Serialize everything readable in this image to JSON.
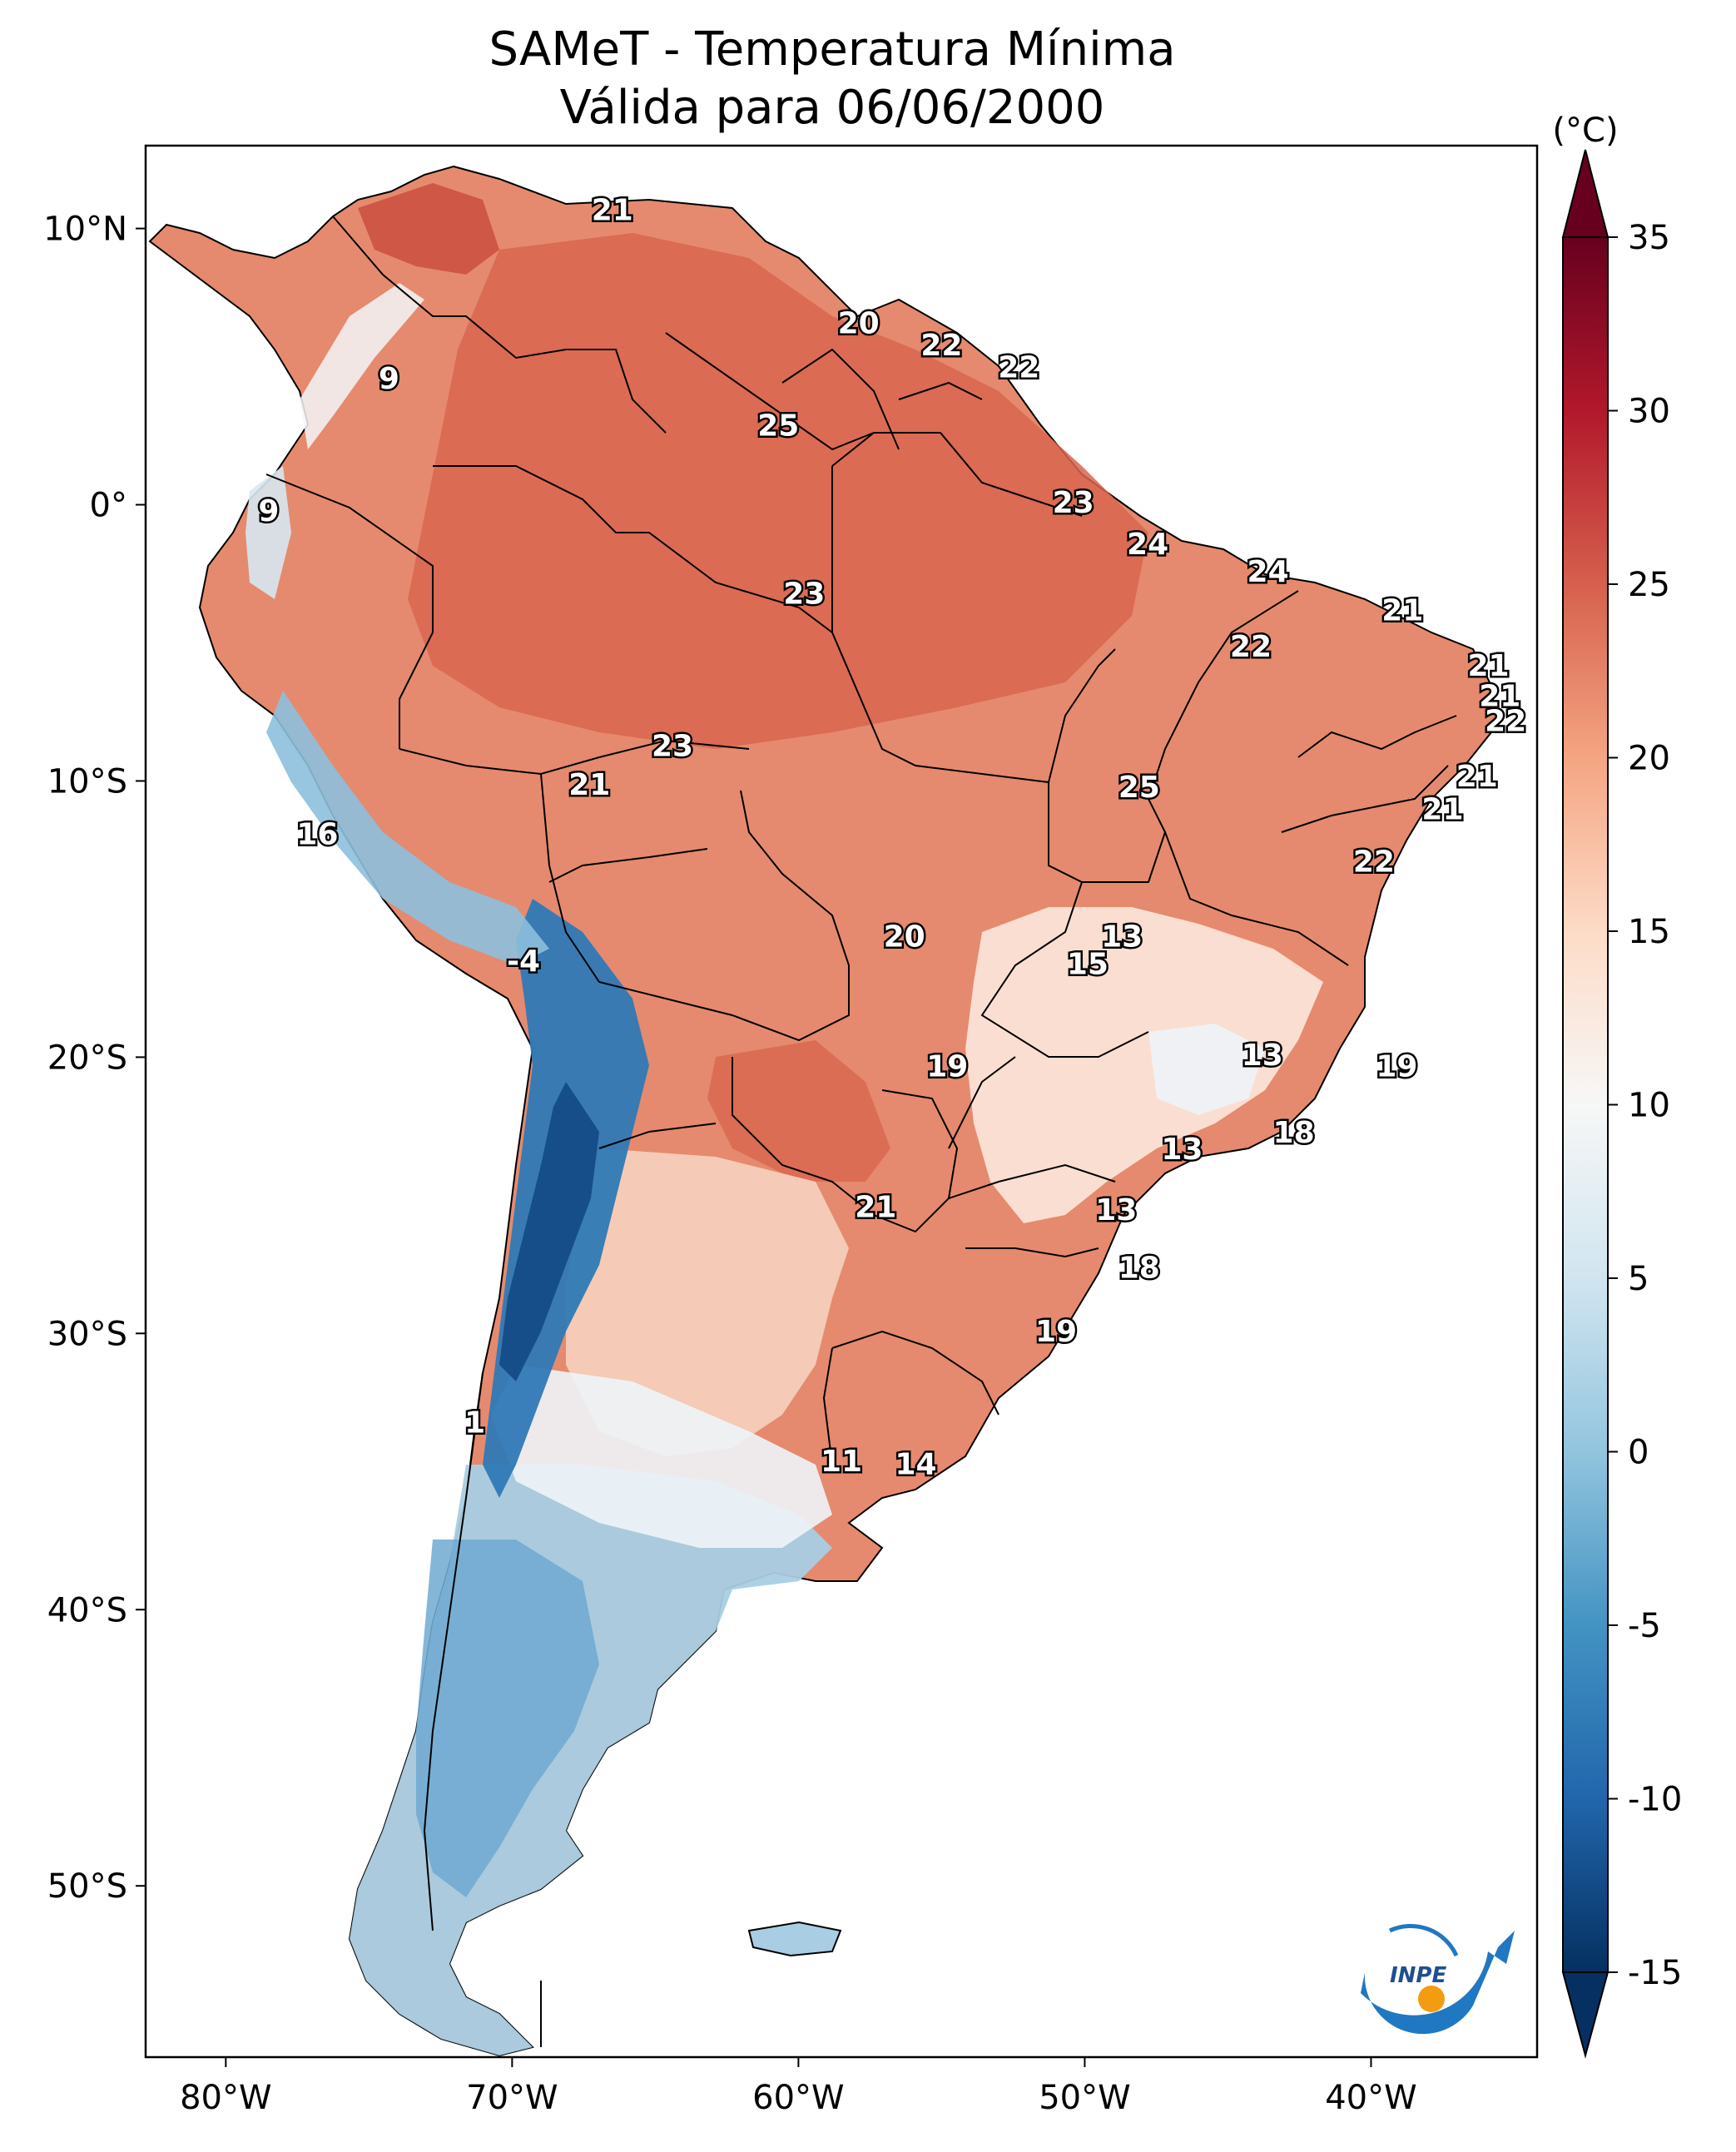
{
  "title": "SAMeT - Temperatura Mínima",
  "subtitle": "Válida para 06/06/2000",
  "map": {
    "lon_range": [
      -82.8,
      -34.2
    ],
    "lat_range": [
      -56.2,
      13.0
    ],
    "lon_ticks": [
      {
        "value": -80,
        "label": "80°W"
      },
      {
        "value": -70,
        "label": "70°W"
      },
      {
        "value": -60,
        "label": "60°W"
      },
      {
        "value": -50,
        "label": "50°W"
      },
      {
        "value": -40,
        "label": "40°W"
      }
    ],
    "lat_ticks": [
      {
        "value": 10,
        "label": "10°N"
      },
      {
        "value": 0,
        "label": "0°"
      },
      {
        "value": -10,
        "label": "10°S"
      },
      {
        "value": -20,
        "label": "20°S"
      },
      {
        "value": -30,
        "label": "30°S"
      },
      {
        "value": -40,
        "label": "40°S"
      },
      {
        "value": -50,
        "label": "50°S"
      }
    ],
    "contour_labels": [
      {
        "lon": -66.5,
        "lat": 10.7,
        "text": "21"
      },
      {
        "lon": -74.3,
        "lat": 4.6,
        "text": "9"
      },
      {
        "lon": -78.5,
        "lat": -0.2,
        "text": "9"
      },
      {
        "lon": -57.9,
        "lat": 6.6,
        "text": "20"
      },
      {
        "lon": -55.0,
        "lat": 5.8,
        "text": "22"
      },
      {
        "lon": -52.3,
        "lat": 5.0,
        "text": "22"
      },
      {
        "lon": -60.7,
        "lat": 2.9,
        "text": "25"
      },
      {
        "lon": -50.4,
        "lat": 0.1,
        "text": "23"
      },
      {
        "lon": -47.8,
        "lat": -1.4,
        "text": "24"
      },
      {
        "lon": -43.6,
        "lat": -2.4,
        "text": "24"
      },
      {
        "lon": -59.8,
        "lat": -3.2,
        "text": "23"
      },
      {
        "lon": -38.9,
        "lat": -3.8,
        "text": "21"
      },
      {
        "lon": -44.2,
        "lat": -5.1,
        "text": "22"
      },
      {
        "lon": -35.9,
        "lat": -5.8,
        "text": "21"
      },
      {
        "lon": -35.5,
        "lat": -6.9,
        "text": "21"
      },
      {
        "lon": -35.3,
        "lat": -7.8,
        "text": "22"
      },
      {
        "lon": -64.4,
        "lat": -8.7,
        "text": "23"
      },
      {
        "lon": -67.3,
        "lat": -10.1,
        "text": "21"
      },
      {
        "lon": -36.3,
        "lat": -9.8,
        "text": "21"
      },
      {
        "lon": -48.1,
        "lat": -10.2,
        "text": "25"
      },
      {
        "lon": -37.5,
        "lat": -11.0,
        "text": "21"
      },
      {
        "lon": -76.8,
        "lat": -11.9,
        "text": "16"
      },
      {
        "lon": -39.9,
        "lat": -12.9,
        "text": "22"
      },
      {
        "lon": -56.3,
        "lat": -15.6,
        "text": "20"
      },
      {
        "lon": -48.7,
        "lat": -15.6,
        "text": "13"
      },
      {
        "lon": -49.9,
        "lat": -16.6,
        "text": "15"
      },
      {
        "lon": -69.6,
        "lat": -16.5,
        "text": "-4"
      },
      {
        "lon": -43.8,
        "lat": -19.9,
        "text": "13"
      },
      {
        "lon": -39.1,
        "lat": -20.3,
        "text": "19"
      },
      {
        "lon": -54.8,
        "lat": -20.3,
        "text": "19"
      },
      {
        "lon": -42.7,
        "lat": -22.7,
        "text": "18"
      },
      {
        "lon": -46.6,
        "lat": -23.3,
        "text": "13"
      },
      {
        "lon": -57.3,
        "lat": -25.4,
        "text": "21"
      },
      {
        "lon": -48.9,
        "lat": -25.5,
        "text": "13"
      },
      {
        "lon": -48.1,
        "lat": -27.6,
        "text": "18"
      },
      {
        "lon": -51.0,
        "lat": -29.9,
        "text": "19"
      },
      {
        "lon": -71.3,
        "lat": -33.2,
        "text": "1"
      },
      {
        "lon": -58.5,
        "lat": -34.6,
        "text": "11"
      },
      {
        "lon": -55.9,
        "lat": -34.7,
        "text": "14"
      }
    ]
  },
  "colorbar": {
    "unit_label": "(°C)",
    "vmin": -15,
    "vmax": 35,
    "extend": "both",
    "ticks": [
      {
        "value": 35,
        "label": "35"
      },
      {
        "value": 30,
        "label": "30"
      },
      {
        "value": 25,
        "label": "25"
      },
      {
        "value": 20,
        "label": "20"
      },
      {
        "value": 15,
        "label": "15"
      },
      {
        "value": 10,
        "label": "10"
      },
      {
        "value": 5,
        "label": "5"
      },
      {
        "value": 0,
        "label": "0"
      },
      {
        "value": -5,
        "label": "-5"
      },
      {
        "value": -10,
        "label": "-10"
      },
      {
        "value": -15,
        "label": "-15"
      }
    ],
    "colors": [
      "#053061",
      "#2166ac",
      "#4393c3",
      "#92c5de",
      "#d1e5f0",
      "#f7f7f7",
      "#fddbc7",
      "#f4a582",
      "#d6604d",
      "#b2182b",
      "#67001f"
    ]
  },
  "logo": {
    "name": "inpe-logo",
    "text": "INPE",
    "colors": [
      "#1f78c1",
      "#f39c12"
    ]
  }
}
